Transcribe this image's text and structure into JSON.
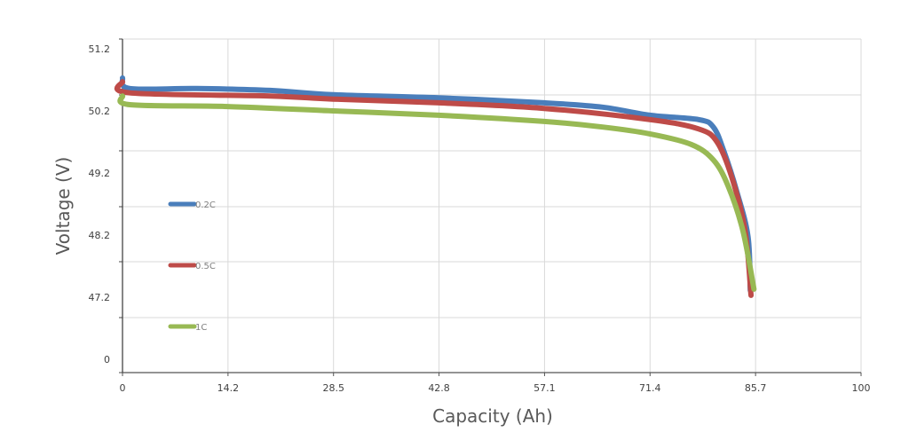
{
  "chart_data": {
    "type": "line",
    "title": "",
    "xlabel": "Capacity (Ah)",
    "ylabel": "Voltage (V)",
    "xlim": [
      0,
      100
    ],
    "x_ticks": [
      "0",
      "14.2",
      "28.5",
      "42.8",
      "57.1",
      "71.4",
      "85.7",
      "100"
    ],
    "y_ticks": [
      "51.2",
      "50.2",
      "49.2",
      "48.2",
      "47.2",
      "0"
    ],
    "grid": true,
    "legend_position": "left-inside",
    "series": [
      {
        "name": "0.2C",
        "color": "#4a7ebb",
        "points": [
          [
            0,
            50.73
          ],
          [
            1,
            50.56
          ],
          [
            10,
            50.56
          ],
          [
            20,
            50.53
          ],
          [
            28.5,
            50.46
          ],
          [
            42.8,
            50.41
          ],
          [
            57.1,
            50.33
          ],
          [
            65,
            50.26
          ],
          [
            71.4,
            50.13
          ],
          [
            78,
            50.06
          ],
          [
            80,
            49.94
          ],
          [
            81.4,
            49.56
          ],
          [
            83.2,
            48.89
          ],
          [
            84.7,
            48.17
          ],
          [
            85,
            47.31
          ]
        ]
      },
      {
        "name": "0.5C",
        "color": "#be4b48",
        "points": [
          [
            0,
            50.67
          ],
          [
            1,
            50.49
          ],
          [
            20,
            50.44
          ],
          [
            28.5,
            50.39
          ],
          [
            42.8,
            50.33
          ],
          [
            57.1,
            50.24
          ],
          [
            71.4,
            50.06
          ],
          [
            78,
            49.91
          ],
          [
            80.5,
            49.7
          ],
          [
            82.5,
            49.13
          ],
          [
            84.3,
            48.27
          ],
          [
            85.1,
            47.23
          ]
        ]
      },
      {
        "name": "1C",
        "color": "#98b954",
        "points": [
          [
            0,
            50.44
          ],
          [
            1,
            50.3
          ],
          [
            14.2,
            50.27
          ],
          [
            28.5,
            50.2
          ],
          [
            42.8,
            50.13
          ],
          [
            57.1,
            50.03
          ],
          [
            65,
            49.94
          ],
          [
            71.4,
            49.83
          ],
          [
            77,
            49.66
          ],
          [
            80,
            49.41
          ],
          [
            82,
            48.99
          ],
          [
            84,
            48.27
          ],
          [
            85.5,
            47.33
          ]
        ]
      }
    ]
  }
}
